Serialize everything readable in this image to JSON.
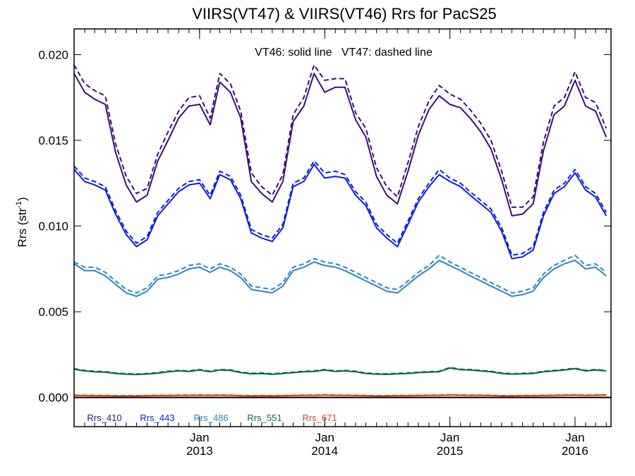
{
  "chart_data": {
    "type": "line",
    "title": "VIIRS(VT47) & VIIRS(VT46)  Rrs for PacS25",
    "annotation": "VT46: solid line   VT47: dashed line",
    "xlabel": "",
    "ylabel": "Rrs (str",
    "ylabel_sup": "-1",
    "ylabel_close": ")",
    "ylim": [
      -0.0017,
      0.0215
    ],
    "xlim": [
      "2012-01-01",
      "2016-04-15"
    ],
    "yticks": [
      {
        "value": 0.0,
        "label": "0.000"
      },
      {
        "value": 0.005,
        "label": "0.005"
      },
      {
        "value": 0.01,
        "label": "0.010"
      },
      {
        "value": 0.015,
        "label": "0.015"
      },
      {
        "value": 0.02,
        "label": "0.020"
      }
    ],
    "xticks": [
      {
        "date": "2013-01-01",
        "month": "Jan",
        "year": "2013"
      },
      {
        "date": "2014-01-01",
        "month": "Jan",
        "year": "2014"
      },
      {
        "date": "2015-01-01",
        "month": "Jan",
        "year": "2015"
      },
      {
        "date": "2016-01-01",
        "month": "Jan",
        "year": "2016"
      }
    ],
    "x": [
      "2012-01-01",
      "2012-02-01",
      "2012-03-01",
      "2012-04-01",
      "2012-05-01",
      "2012-06-01",
      "2012-07-01",
      "2012-08-01",
      "2012-09-01",
      "2012-10-01",
      "2012-11-01",
      "2012-12-01",
      "2013-01-01",
      "2013-02-01",
      "2013-03-01",
      "2013-04-01",
      "2013-05-01",
      "2013-06-01",
      "2013-07-01",
      "2013-08-01",
      "2013-09-01",
      "2013-10-01",
      "2013-11-01",
      "2013-12-01",
      "2014-01-01",
      "2014-02-01",
      "2014-03-01",
      "2014-04-01",
      "2014-05-01",
      "2014-06-01",
      "2014-07-01",
      "2014-08-01",
      "2014-09-01",
      "2014-10-01",
      "2014-11-01",
      "2014-12-01",
      "2015-01-01",
      "2015-02-01",
      "2015-03-01",
      "2015-04-01",
      "2015-05-01",
      "2015-06-01",
      "2015-07-01",
      "2015-08-01",
      "2015-09-01",
      "2015-10-01",
      "2015-11-01",
      "2015-12-01",
      "2016-01-01",
      "2016-02-01",
      "2016-03-01",
      "2016-04-01"
    ],
    "series": [
      {
        "name": "Rrs_410",
        "color": "#3b0f7a",
        "solid": [
          0.0189,
          0.0178,
          0.0174,
          0.0171,
          0.0143,
          0.0124,
          0.0114,
          0.0118,
          0.0138,
          0.015,
          0.0163,
          0.017,
          0.0171,
          0.0159,
          0.0184,
          0.0178,
          0.0163,
          0.0126,
          0.0119,
          0.0114,
          0.0126,
          0.0161,
          0.017,
          0.0189,
          0.0178,
          0.0181,
          0.0181,
          0.0162,
          0.0152,
          0.0129,
          0.0118,
          0.0113,
          0.0132,
          0.0153,
          0.0168,
          0.0176,
          0.0171,
          0.0169,
          0.0163,
          0.0155,
          0.0145,
          0.0127,
          0.0106,
          0.0107,
          0.0113,
          0.0144,
          0.0165,
          0.017,
          0.0185,
          0.017,
          0.0167,
          0.0152
        ],
        "dashed": [
          0.0194,
          0.0183,
          0.0179,
          0.0176,
          0.0148,
          0.0129,
          0.0119,
          0.0122,
          0.0142,
          0.0155,
          0.0167,
          0.0175,
          0.0176,
          0.0163,
          0.0189,
          0.0183,
          0.0167,
          0.0131,
          0.0123,
          0.0118,
          0.013,
          0.0165,
          0.0175,
          0.0194,
          0.0185,
          0.0186,
          0.0186,
          0.0166,
          0.0157,
          0.0134,
          0.0123,
          0.0117,
          0.0137,
          0.0158,
          0.0173,
          0.0182,
          0.0177,
          0.0174,
          0.0168,
          0.016,
          0.015,
          0.0132,
          0.0111,
          0.0111,
          0.0117,
          0.0149,
          0.017,
          0.0175,
          0.019,
          0.0175,
          0.0172,
          0.0157
        ]
      },
      {
        "name": "Rrs_443",
        "color": "#0a1ee6",
        "solid": [
          0.0133,
          0.0126,
          0.0124,
          0.0121,
          0.0107,
          0.0095,
          0.0088,
          0.0092,
          0.0106,
          0.0113,
          0.012,
          0.0124,
          0.0125,
          0.0116,
          0.013,
          0.0127,
          0.0116,
          0.0096,
          0.0093,
          0.0091,
          0.0099,
          0.0123,
          0.0126,
          0.0136,
          0.0128,
          0.0129,
          0.0128,
          0.0118,
          0.0112,
          0.0099,
          0.0093,
          0.0088,
          0.0101,
          0.0114,
          0.0123,
          0.013,
          0.0126,
          0.0123,
          0.0118,
          0.0113,
          0.0108,
          0.0097,
          0.0081,
          0.0082,
          0.0086,
          0.0106,
          0.0119,
          0.0123,
          0.0131,
          0.0121,
          0.0117,
          0.0106
        ],
        "dashed": [
          0.0135,
          0.0128,
          0.0126,
          0.0123,
          0.0109,
          0.0097,
          0.009,
          0.0094,
          0.0108,
          0.0115,
          0.0122,
          0.0126,
          0.0127,
          0.0118,
          0.0132,
          0.0129,
          0.0118,
          0.0098,
          0.0095,
          0.0093,
          0.0101,
          0.0125,
          0.0128,
          0.0138,
          0.0131,
          0.0132,
          0.013,
          0.012,
          0.0114,
          0.0101,
          0.0095,
          0.009,
          0.0103,
          0.0116,
          0.0125,
          0.0133,
          0.0128,
          0.0125,
          0.012,
          0.0115,
          0.011,
          0.0099,
          0.0083,
          0.0084,
          0.0088,
          0.0108,
          0.0121,
          0.0125,
          0.0133,
          0.0123,
          0.0119,
          0.0108
        ]
      },
      {
        "name": "Rrs_486",
        "color": "#2b86c4",
        "solid": [
          0.0078,
          0.0074,
          0.0074,
          0.0071,
          0.0066,
          0.0061,
          0.0059,
          0.0062,
          0.0069,
          0.007,
          0.0072,
          0.0075,
          0.0076,
          0.0073,
          0.0076,
          0.0074,
          0.007,
          0.0063,
          0.0062,
          0.0061,
          0.0065,
          0.0074,
          0.0076,
          0.0079,
          0.0077,
          0.0076,
          0.0074,
          0.0071,
          0.0068,
          0.0065,
          0.0062,
          0.0061,
          0.0066,
          0.0071,
          0.0075,
          0.008,
          0.0077,
          0.0074,
          0.0071,
          0.0068,
          0.0065,
          0.0062,
          0.0059,
          0.006,
          0.0062,
          0.007,
          0.0075,
          0.0078,
          0.008,
          0.0075,
          0.0076,
          0.0071
        ],
        "dashed": [
          0.0079,
          0.0076,
          0.0076,
          0.0073,
          0.0068,
          0.0063,
          0.0061,
          0.0064,
          0.0071,
          0.0072,
          0.0074,
          0.0077,
          0.0078,
          0.0075,
          0.0078,
          0.0076,
          0.0072,
          0.0065,
          0.0064,
          0.0063,
          0.0067,
          0.0076,
          0.0078,
          0.0081,
          0.0079,
          0.0078,
          0.0076,
          0.0073,
          0.007,
          0.0067,
          0.0064,
          0.0063,
          0.0068,
          0.0073,
          0.0077,
          0.0083,
          0.0079,
          0.0076,
          0.0073,
          0.007,
          0.0067,
          0.0064,
          0.0061,
          0.0062,
          0.0064,
          0.0072,
          0.0077,
          0.008,
          0.0083,
          0.0077,
          0.0078,
          0.0073
        ]
      },
      {
        "name": "Rrs_551",
        "color": "#0c6b3a",
        "solid": [
          0.00165,
          0.00155,
          0.0015,
          0.00148,
          0.0014,
          0.00136,
          0.00134,
          0.00137,
          0.00142,
          0.0015,
          0.00155,
          0.00152,
          0.0016,
          0.0015,
          0.0016,
          0.00158,
          0.00145,
          0.00138,
          0.0014,
          0.00135,
          0.0014,
          0.00145,
          0.0015,
          0.00152,
          0.0016,
          0.00152,
          0.00155,
          0.0015,
          0.0014,
          0.00136,
          0.00135,
          0.00138,
          0.0014,
          0.00145,
          0.00148,
          0.0015,
          0.00172,
          0.00162,
          0.0016,
          0.00155,
          0.0015,
          0.0014,
          0.00136,
          0.00138,
          0.0014,
          0.0015,
          0.00155,
          0.0016,
          0.00168,
          0.00155,
          0.0016,
          0.00155
        ],
        "dashed": [
          0.00168,
          0.00158,
          0.00153,
          0.00151,
          0.00143,
          0.00139,
          0.00137,
          0.0014,
          0.00145,
          0.00153,
          0.00158,
          0.00155,
          0.00163,
          0.00153,
          0.00163,
          0.00161,
          0.00148,
          0.00141,
          0.00143,
          0.00138,
          0.00143,
          0.00148,
          0.00153,
          0.00155,
          0.00163,
          0.00155,
          0.00158,
          0.00153,
          0.00143,
          0.00139,
          0.00138,
          0.00141,
          0.00143,
          0.00148,
          0.00151,
          0.00153,
          0.00175,
          0.00165,
          0.00163,
          0.00158,
          0.00153,
          0.00143,
          0.00139,
          0.00141,
          0.00143,
          0.00153,
          0.00158,
          0.00163,
          0.00171,
          0.00158,
          0.00163,
          0.00158
        ]
      },
      {
        "name": "Rrs_671",
        "color": "#d9481c",
        "solid": [
          0.00012,
          0.00011,
          0.0001,
          0.0001,
          9e-05,
          9e-05,
          9e-05,
          0.0001,
          0.00011,
          0.00011,
          0.00012,
          0.00012,
          0.00013,
          0.00012,
          0.00013,
          0.00012,
          0.0001,
          9e-05,
          0.0001,
          9e-05,
          0.0001,
          0.00011,
          0.00012,
          0.00012,
          0.00014,
          0.00012,
          0.00012,
          0.00011,
          0.0001,
          9e-05,
          9e-05,
          0.0001,
          0.0001,
          0.00011,
          0.00012,
          0.00012,
          0.00014,
          0.00013,
          0.00012,
          0.00012,
          0.00011,
          9e-05,
          9e-05,
          0.0001,
          0.0001,
          0.00011,
          0.00012,
          0.00013,
          0.00014,
          0.00012,
          0.00013,
          0.00014
        ],
        "dashed": [
          0.00014,
          0.00013,
          0.00012,
          0.00012,
          0.00011,
          0.00011,
          0.00011,
          0.00012,
          0.00013,
          0.00013,
          0.00014,
          0.00014,
          0.00015,
          0.00014,
          0.00015,
          0.00014,
          0.00012,
          0.00011,
          0.00012,
          0.00011,
          0.00012,
          0.00013,
          0.00014,
          0.00014,
          0.00016,
          0.00014,
          0.00014,
          0.00013,
          0.00012,
          0.00011,
          0.00011,
          0.00012,
          0.00012,
          0.00013,
          0.00014,
          0.00014,
          0.00016,
          0.00015,
          0.00014,
          0.00014,
          0.00013,
          0.00011,
          0.00011,
          0.00012,
          0.00012,
          0.00013,
          0.00014,
          0.00015,
          0.00016,
          0.00014,
          0.00015,
          0.00016
        ]
      }
    ],
    "zero_line": true,
    "grid": false,
    "legend_position": "bottom-left"
  }
}
